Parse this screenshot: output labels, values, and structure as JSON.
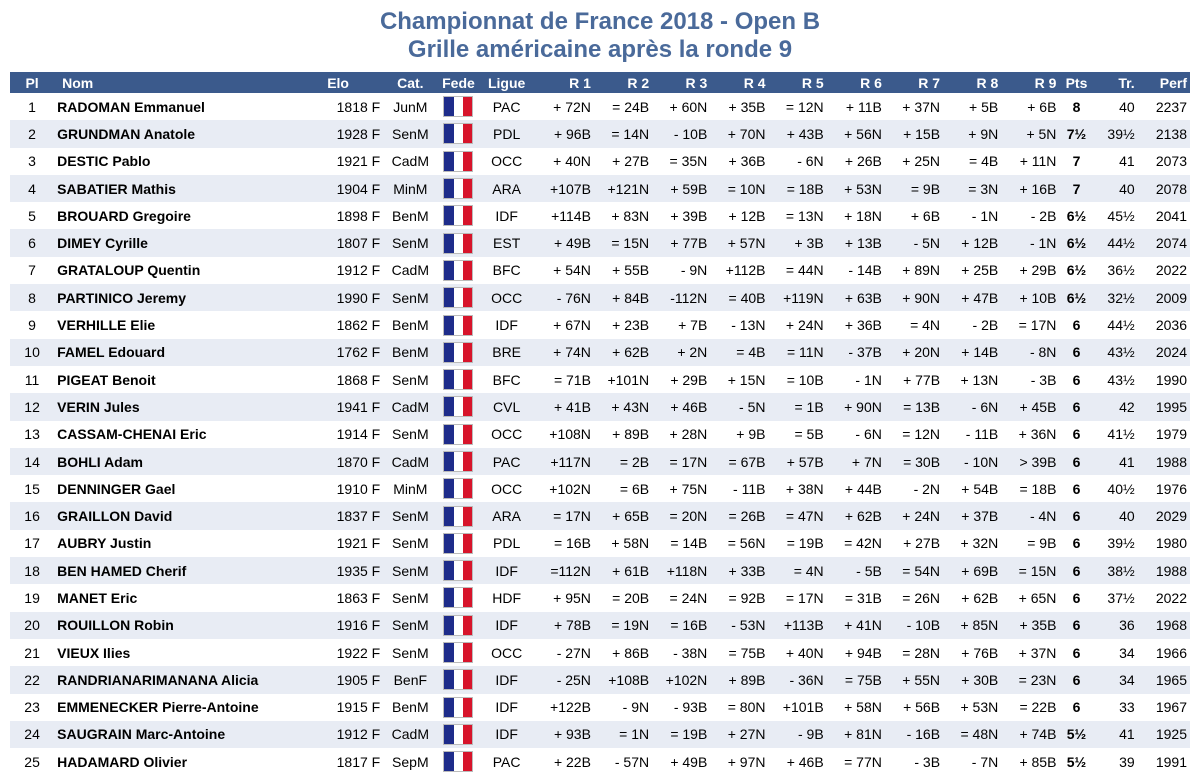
{
  "title_line1": "Championnat de France 2018 - Open B",
  "title_line2": "Grille américaine après la ronde 9",
  "flag_colors": [
    "#1e2c8a",
    "#ffffff",
    "#d7142b"
  ],
  "header": {
    "pl": "Pl",
    "nom": "Nom",
    "elo": "Elo",
    "cat": "Cat.",
    "fede": "Fede",
    "ligue": "Ligue",
    "r1": "R 1",
    "r2": "R 2",
    "r3": "R 3",
    "r4": "R 4",
    "r5": "R 5",
    "r6": "R 6",
    "r7": "R 7",
    "r8": "R 8",
    "r9": "R 9",
    "pts": "Pts",
    "tr": "Tr.",
    "perf": "Perf"
  },
  "rows": [
    {
      "pl": "1",
      "nom": "RADOMAN Emmanuel",
      "elo": "1818 F",
      "cat": "JunM",
      "fede": "FRA",
      "ligue": "PAC",
      "rounds": [
        "+ 72N",
        "= 24B",
        "+ 60N",
        "+ 35B",
        "= 12N",
        "+ 11B",
        "+ 37N",
        "+ 5B",
        "+ 6B"
      ],
      "pts": "8",
      "tr": "40",
      "perf": "2237"
    },
    {
      "pl": "2",
      "nom": "GRUNDMAN Anatole",
      "elo": "1928 F",
      "cat": "SenM",
      "fede": "FRA",
      "ligue": "PDL",
      "rounds": [
        "+ 96B",
        "= 14N",
        "- 10B",
        "+ 70N",
        "+ 43B",
        "+ 56N",
        "+ 15B",
        "+ 9N",
        "+ 5N"
      ],
      "pts": "7½",
      "tr": "39½",
      "perf": "2138"
    },
    {
      "pl": "3",
      "nom": "DESTIC Pablo",
      "elo": "1921 F",
      "cat": "CadM",
      "fede": "FRA",
      "ligue": "OCC",
      "rounds": [
        "+ 40N",
        "+ 27B",
        "= 35N",
        "+ 36B",
        "- 6N",
        "+ 26B",
        "+ 25N",
        "= 4B",
        "+ 11N"
      ],
      "pts": "7",
      "tr": "41",
      "perf": "2073"
    },
    {
      "pl": "4",
      "nom": "SABATIER Mathis",
      "elo": "1904 F",
      "cat": "MinM",
      "fede": "FRA",
      "ligue": "ARA",
      "rounds": [
        "+107B",
        "+121N",
        "+ 59B",
        "= 10N",
        "= 18B",
        "+ 53N",
        "= 9B",
        "= 3N",
        "+ 16B"
      ],
      "pts": "7",
      "tr": "40",
      "perf": "2078"
    },
    {
      "pl": "5",
      "nom": "BROUARD Gregoire",
      "elo": "1898 F",
      "cat": "BenM",
      "fede": "FRA",
      "ligue": "IDF",
      "rounds": [
        "+114B",
        "+ 83N",
        "+ 39B",
        "+ 12B",
        "= 13N",
        "+ 18N",
        "+ 6B",
        "- 1N",
        "- 2B"
      ],
      "pts": "6½",
      "tr": "45½",
      "perf": "2041"
    },
    {
      "pl": "6",
      "nom": "DIMEY Cyrille",
      "elo": "1807 F",
      "cat": "SenM",
      "fede": "FRA",
      "ligue": "EST",
      "rounds": [
        "+ 49B",
        "= 15N",
        "+ 77B",
        "+ 57N",
        "+ 3B",
        "+ 13B",
        "- 5N",
        "+ 12B",
        "- 1N"
      ],
      "pts": "6½",
      "tr": "44½",
      "perf": "2074"
    },
    {
      "pl": "7",
      "nom": "GRATALOUP Quentin",
      "elo": "1912 F",
      "cat": "CadM",
      "fede": "FRA",
      "ligue": "BFC",
      "rounds": [
        "+ 54N",
        "+ 55B",
        "- 9N",
        "+112B",
        "= 44N",
        "- 14B",
        "+ 89N",
        "+ 25B",
        "+ 29B"
      ],
      "pts": "6½",
      "tr": "36½",
      "perf": "2022"
    },
    {
      "pl": "8",
      "nom": "PARTINICO Jeremy",
      "elo": "1990 F",
      "cat": "SenM",
      "fede": "FRA",
      "ligue": "OCC",
      "rounds": [
        "- 76N",
        "+ 84B",
        "-112N",
        "= 40B",
        "+119N",
        "+ 63B",
        "+ 90N",
        "+ 47B",
        "+ 10B"
      ],
      "pts": "6½",
      "tr": "32½",
      "perf": "2009"
    },
    {
      "pl": "9",
      "nom": "VERHILLE Elie",
      "elo": "1862 F",
      "cat": "BenM",
      "fede": "FRA",
      "ligue": "IDF",
      "rounds": [
        "+ 67N",
        "+ 23B",
        "+ 7B",
        "- 13N",
        "+ 24N",
        "+ 36B",
        "= 4N",
        "- 2B",
        "= 17N"
      ],
      "pts": "6",
      "tr": "44½",
      "perf": "2036"
    },
    {
      "pl": "10",
      "nom": "FAMEL Edouard",
      "elo": "1762 F",
      "cat": "BenM",
      "fede": "FRA",
      "ligue": "BRE",
      "rounds": [
        "+ 74N",
        "+ 62B",
        "+ 2N",
        "= 4B",
        "= 11N",
        "- 37B",
        "+ 20N",
        "+ 14B",
        "- 8N"
      ],
      "pts": "6",
      "tr": "43½",
      "perf": "2024"
    },
    {
      "pl": "11",
      "nom": "PIGEAT Benoit",
      "elo": "1868 F",
      "cat": "SenM",
      "fede": "FRA",
      "ligue": "BFC",
      "rounds": [
        "= 71B",
        "+101N",
        "+ 29B",
        "+ 15N",
        "= 10B",
        "- 1N",
        "+ 77B",
        "+ 13N",
        "- 3B"
      ],
      "pts": "6",
      "tr": "43½",
      "perf": "1990"
    },
    {
      "pl": "12",
      "nom": "VERIN Jules",
      "elo": "1941 F",
      "cat": "CadM",
      "fede": "FRA",
      "ligue": "CVL",
      "rounds": [
        "+ 41B",
        "+ 43N",
        "+ 46B",
        "- 5N",
        "= 1B",
        "+ 90N",
        "= 13B",
        "- 6N",
        "+ 45B"
      ],
      "pts": "6",
      "tr": "42",
      "perf": "1995"
    },
    {
      "pl": "13",
      "nom": "CASSAM-CHENAI Eric",
      "elo": "1914 F",
      "cat": "SenM",
      "fede": "FRA",
      "ligue": "OCC",
      "rounds": [
        "+108N",
        "+ 89B",
        "+ 28N",
        "+ 9B",
        "= 5B",
        "- 6N",
        "= 12N",
        "- 11B",
        "+ 36N"
      ],
      "pts": "6",
      "tr": "41½",
      "perf": "1979"
    },
    {
      "pl": "14",
      "nom": "BOHLI Adam",
      "elo": "1870 F",
      "cat": "CadM",
      "fede": "FRA",
      "ligue": "PAC",
      "rounds": [
        "+117N",
        "= 2B",
        "= 17N",
        "= 67B",
        "+ 57B",
        "+ 7N",
        "= 30B",
        "- 10N",
        "> 39B"
      ],
      "pts": "6",
      "tr": "41",
      "perf": "1988"
    },
    {
      "pl": "15",
      "nom": "DENNINGER Gael",
      "elo": "1910 F",
      "cat": "MinM",
      "fede": "FRA",
      "ligue": "OCC",
      "rounds": [
        "+102N",
        "= 6B",
        "+ 75N",
        "- 11B",
        "+ 38N",
        "+ 44B",
        "- 2N",
        "+ 54B",
        "= 18B"
      ],
      "pts": "6",
      "tr": "40½",
      "perf": "1976"
    },
    {
      "pl": "16",
      "nom": "GRAILLON David",
      "elo": "1837 F",
      "cat": "SenM",
      "fede": "FRA",
      "ligue": "ARA",
      "rounds": [
        "= 17N",
        "+ 65B",
        "= 20N",
        "= 26B",
        "= 47N",
        "+ 62B",
        "+ 24N",
        "+ 37B",
        "- 4N"
      ],
      "pts": "6",
      "tr": "40",
      "perf": "2029"
    },
    {
      "pl": "17",
      "nom": "AUBRY Justin",
      "elo": "1921 F",
      "cat": "SenM",
      "fede": "FRA",
      "ligue": "PDL",
      "rounds": [
        "= 16B",
        "+ 58N",
        "= 14B",
        "= 56N",
        "= 19B",
        "= 42N",
        "+ 27B",
        "+ 32N",
        "= 9B"
      ],
      "pts": "6",
      "tr": "39½",
      "perf": "1980"
    },
    {
      "pl": "18",
      "nom": "BEN HAMED Cherif",
      "elo": "1935 F",
      "cat": "SenM",
      "fede": "FRA",
      "ligue": "IDF",
      "rounds": [
        "=112N",
        "+ 61B",
        "+118N",
        "+ 33B",
        "= 4N",
        "- 5B",
        "= 54N",
        "+ 69B",
        "= 15N"
      ],
      "pts": "6",
      "tr": "38½",
      "perf": "1988"
    },
    {
      "pl": "19",
      "nom": "MANET Eric",
      "elo": "1863 F",
      "cat": "SenM",
      "fede": "FRA",
      "ligue": "HDF",
      "rounds": [
        "+ 95N",
        "= 20B",
        "= 24N",
        "= 92B",
        "= 17N",
        "= 31B",
        "= 26N",
        "+ 62B",
        "+ 65N"
      ],
      "pts": "6",
      "tr": "37½",
      "perf": "2022"
    },
    {
      "pl": "20",
      "nom": "ROUILLON Robin",
      "elo": "1916 F",
      "cat": "SenM",
      "fede": "FRA",
      "ligue": "IDF",
      "rounds": [
        "+ 78B",
        "= 19N",
        "= 16B",
        "- 53N",
        "+113B",
        "+ 41N",
        "- 10B",
        "+ 85N",
        "+ 35B"
      ],
      "pts": "6",
      "tr": "36",
      "perf": "1968"
    },
    {
      "pl": "21",
      "nom": "VIEUX Ilies",
      "elo": "1922 F",
      "cat": "SenM",
      "fede": "FRA",
      "ligue": "OCC",
      "rounds": [
        "- 27N",
        "+ 86B",
        "- 38N",
        "= 75B",
        "+ 40N",
        "+ 94B",
        "= 28N",
        "+ 76B",
        "+ 37N"
      ],
      "pts": "6",
      "tr": "34",
      "perf": "1966"
    },
    {
      "pl": "22",
      "nom": "RANDRIANARIMANANA Alicia",
      "elo": "1905 F",
      "cat": "BenF",
      "fede": "FRA",
      "ligue": "IDF",
      "rounds": [
        "- 25N",
        "+108B",
        "+102N",
        "+ 89B",
        "- 36N",
        "= 75B",
        "+ 55N",
        "+ 30B",
        "= 23N"
      ],
      "pts": "6",
      "tr": "34",
      "perf": "1965"
    },
    {
      "pl": "23",
      "nom": "EMMENECKER Pierre-Antoine",
      "elo": "1915 F",
      "cat": "BenM",
      "fede": "FRA",
      "ligue": "IDF",
      "rounds": [
        "+122B",
        "- 9N",
        "- 93B",
        "= 80N",
        "+101B",
        "+ 58N",
        "+ 56B",
        "+ 53N",
        "= 22B"
      ],
      "pts": "6",
      "tr": "33",
      "perf": "1967"
    },
    {
      "pl": "24",
      "nom": "SAUGRAIN Marc-Antoine",
      "elo": "1912 F",
      "cat": "CadM",
      "fede": "FRA",
      "ligue": "IDF",
      "rounds": [
        "+ 93B",
        "= 1N",
        "= 19B",
        "+ 27N",
        "- 9B",
        "+ 81N",
        "- 16B",
        "= 48N",
        "+ 74B"
      ],
      "pts": "5½",
      "tr": "41",
      "perf": "1925"
    },
    {
      "pl": "25",
      "nom": "HADAMARD Olivier",
      "elo": "1817 F",
      "cat": "SepM",
      "fede": "FRA",
      "ligue": "PAC",
      "rounds": [
        "+ 22B",
        "- 57N",
        "+ 49B",
        "+ 97N",
        "+ 46B",
        "= 77N",
        "- 3B",
        "- 7N",
        "+ 85B"
      ],
      "pts": "5½",
      "tr": "39",
      "perf": "1991"
    }
  ]
}
